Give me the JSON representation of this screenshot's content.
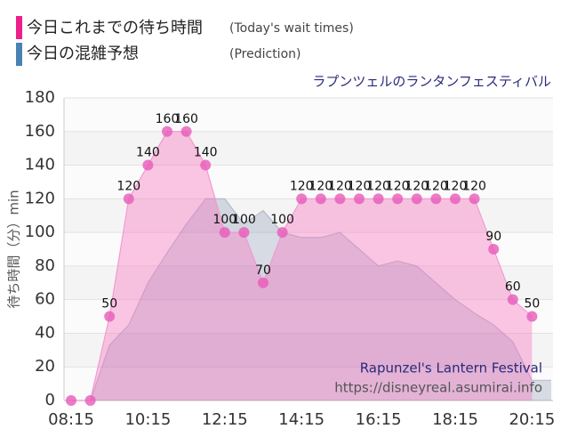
{
  "chart_data": {
    "type": "area",
    "title": "ラプンツェルのランタンフェスティバル",
    "y_label": "待ち時間（分）min",
    "watermark": [
      "Rapunzel's Lantern Festival",
      "https://disneyreal.asumirai.info"
    ],
    "categories": [
      "08:15",
      null,
      null,
      null,
      "10:15",
      null,
      null,
      null,
      "12:15",
      null,
      null,
      null,
      "14:15",
      null,
      null,
      null,
      "16:15",
      null,
      null,
      null,
      "18:15",
      null,
      null,
      null,
      "20:15",
      null
    ],
    "series": [
      {
        "name": "今日これまでの待ち時間",
        "legend_note": "(Today's wait times)",
        "color": "#ee1e8c",
        "values": [
          0,
          0,
          50,
          120,
          140,
          160,
          160,
          140,
          100,
          100,
          70,
          100,
          120,
          120,
          120,
          120,
          120,
          120,
          120,
          120,
          120,
          120,
          90,
          60,
          50,
          null
        ]
      },
      {
        "name": "今日の混雑予想",
        "legend_note": "(Prediction)",
        "color": "#4a82b4",
        "values": [
          0,
          0,
          33,
          45,
          70,
          88,
          105,
          120,
          120,
          105,
          113,
          100,
          97,
          97,
          100,
          90,
          80,
          83,
          80,
          70,
          60,
          52,
          45,
          35,
          12,
          12
        ]
      }
    ],
    "ylim": [
      0,
      180
    ],
    "yticks": [
      0,
      20,
      40,
      60,
      80,
      100,
      120,
      140,
      160,
      180
    ],
    "grid": true
  }
}
